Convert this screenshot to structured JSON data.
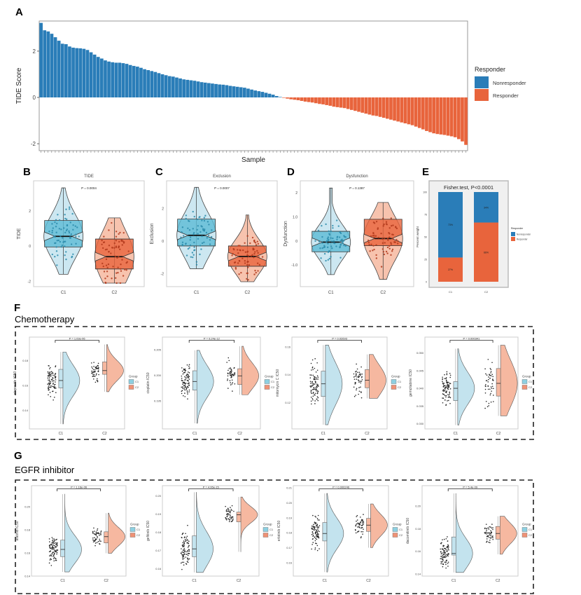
{
  "colors": {
    "nonresponder": "#2a7db8",
    "responder": "#e8643c",
    "c1_violin": "#c3e3ee",
    "c1_box": "#5cbcd6",
    "c1_point": "#2b8cab",
    "c2_violin": "#f6b8a0",
    "c2_box": "#e8643c",
    "c2_point": "#b3391c"
  },
  "panel_labels": {
    "a": "A",
    "b": "B",
    "c": "C",
    "d": "D",
    "e": "E",
    "f": "F",
    "g": "G"
  },
  "sections": {
    "f_title": "Chemotherapy",
    "g_title": "EGFR inhibitor"
  },
  "chart_data": [
    {
      "id": "A",
      "type": "bar",
      "xlabel": "Sample",
      "ylabel": "TIDE Score",
      "ylim": [
        -2.3,
        3.3
      ],
      "yticks": [
        -2,
        0,
        2
      ],
      "ytick_labels": [
        "-2",
        "0",
        "2"
      ],
      "legend": {
        "title": "Responder",
        "items": [
          "Nonresponder",
          "Responder"
        ],
        "position": "right"
      },
      "series": [
        {
          "name": "Nonresponder",
          "values": [
            3.22,
            2.9,
            2.85,
            2.75,
            2.6,
            2.45,
            2.32,
            2.3,
            2.2,
            2.15,
            2.13,
            2.12,
            2.1,
            2.05,
            1.95,
            1.85,
            1.75,
            1.68,
            1.6,
            1.55,
            1.52,
            1.5,
            1.5,
            1.48,
            1.45,
            1.4,
            1.36,
            1.33,
            1.28,
            1.22,
            1.18,
            1.14,
            1.1,
            1.05,
            1.0,
            0.96,
            0.92,
            0.9,
            0.86,
            0.82,
            0.78,
            0.76,
            0.74,
            0.72,
            0.69,
            0.66,
            0.64,
            0.62,
            0.6,
            0.58,
            0.56,
            0.55,
            0.53,
            0.5,
            0.48,
            0.46,
            0.44,
            0.42,
            0.38,
            0.34,
            0.3,
            0.27,
            0.24,
            0.2,
            0.16,
            0.12,
            0.06,
            0.02
          ]
        },
        {
          "name": "Responder",
          "values": [
            -0.02,
            -0.05,
            -0.08,
            -0.1,
            -0.12,
            -0.15,
            -0.18,
            -0.2,
            -0.22,
            -0.25,
            -0.28,
            -0.3,
            -0.33,
            -0.36,
            -0.4,
            -0.42,
            -0.44,
            -0.46,
            -0.5,
            -0.54,
            -0.58,
            -0.62,
            -0.66,
            -0.7,
            -0.74,
            -0.78,
            -0.8,
            -0.84,
            -0.88,
            -0.92,
            -0.96,
            -1.0,
            -1.04,
            -1.08,
            -1.12,
            -1.16,
            -1.2,
            -1.26,
            -1.32,
            -1.38,
            -1.45,
            -1.5,
            -1.55,
            -1.58,
            -1.6,
            -1.62,
            -1.65,
            -1.68,
            -1.72,
            -1.8,
            -1.9,
            -2.05
          ]
        }
      ]
    },
    {
      "id": "B",
      "type": "violin",
      "title": "TIDE",
      "ylabel": "TIDE",
      "pvalue": "P = 0.0004",
      "categories": [
        "C1",
        "C2"
      ],
      "ylim": [
        -2.3,
        3.7
      ],
      "yticks": [
        -2,
        0,
        2
      ],
      "ytick_labels": [
        "-2",
        "0",
        "2"
      ],
      "groups": [
        {
          "name": "C1",
          "min": -1.6,
          "q1": -0.05,
          "median": 0.55,
          "q3": 1.45,
          "max": 3.3
        },
        {
          "name": "C2",
          "min": -2.1,
          "q1": -1.3,
          "median": -0.6,
          "q3": 0.4,
          "max": 1.6
        }
      ]
    },
    {
      "id": "C",
      "type": "violin",
      "title": "Exclusion",
      "ylabel": "Exclusion",
      "pvalue": "P = 0.0007",
      "categories": [
        "C1",
        "C2"
      ],
      "ylim": [
        -2.8,
        3.7
      ],
      "yticks": [
        -2,
        0,
        2
      ],
      "ytick_labels": [
        "-2",
        "0",
        "2"
      ],
      "groups": [
        {
          "name": "C1",
          "min": -1.7,
          "q1": -0.3,
          "median": 0.35,
          "q3": 1.35,
          "max": 3.3
        },
        {
          "name": "C2",
          "min": -2.5,
          "q1": -1.55,
          "median": -0.95,
          "q3": -0.3,
          "max": 1.6
        }
      ]
    },
    {
      "id": "D",
      "type": "violin",
      "title": "Dysfunction",
      "ylabel": "Dysfunction",
      "pvalue": "P = 0.1387",
      "categories": [
        "C1",
        "C2"
      ],
      "ylim": [
        -1.9,
        2.5
      ],
      "yticks": [
        -1,
        0,
        1,
        2
      ],
      "ytick_labels": [
        "-1.0",
        "0",
        "1.0",
        "2"
      ],
      "groups": [
        {
          "name": "C1",
          "min": -1.4,
          "q1": -0.45,
          "median": -0.05,
          "q3": 0.4,
          "max": 2.2
        },
        {
          "name": "C2",
          "min": -1.6,
          "q1": -0.2,
          "median": 0.1,
          "q3": 0.9,
          "max": 1.6
        }
      ]
    },
    {
      "id": "E",
      "type": "bar",
      "stacked": true,
      "title": "Fisher.test, P<0.0001",
      "ylabel": "Percent weight",
      "categories": [
        "C1",
        "C2"
      ],
      "ylim": [
        0,
        100
      ],
      "yticks": [
        0,
        25,
        50,
        75,
        100
      ],
      "ytick_labels": [
        "0",
        "25",
        "50",
        "75",
        "100"
      ],
      "legend": {
        "title": "Responder",
        "items": [
          "Nonresponder",
          "Responder"
        ],
        "position": "right"
      },
      "series": [
        {
          "name": "Responder",
          "values": [
            27,
            66
          ],
          "labels": [
            "27%",
            "66%"
          ]
        },
        {
          "name": "Nonresponder",
          "values": [
            73,
            34
          ],
          "labels": [
            "73%",
            "34%"
          ]
        }
      ]
    },
    {
      "id": "F1",
      "type": "raincloud",
      "ylabel": "etoposide IC50",
      "pvalue": "P = 1.03e-06",
      "categories": [
        "C1",
        "C2"
      ],
      "ylim": [
        0.125,
        0.199
      ],
      "yticks": [
        0.14,
        0.16,
        0.18
      ],
      "ytick_labels": [
        "0.14",
        "0.16",
        "0.18"
      ],
      "legend": {
        "title": "Group",
        "items": [
          "C1",
          "C2"
        ]
      },
      "groups": [
        {
          "name": "C1",
          "min": 0.129,
          "q1": 0.158,
          "median": 0.164,
          "q3": 0.173,
          "max": 0.187
        },
        {
          "name": "C2",
          "min": 0.155,
          "q1": 0.169,
          "median": 0.172,
          "q3": 0.179,
          "max": 0.193
        }
      ]
    },
    {
      "id": "F2",
      "type": "raincloud",
      "ylabel": "cisplatin IC50",
      "pvalue": "P = 9.24e-12",
      "categories": [
        "C1",
        "C2"
      ],
      "ylim": [
        0.1895,
        0.2075
      ],
      "yticks": [
        0.195,
        0.2,
        0.205
      ],
      "ytick_labels": [
        "0.195",
        "0.200",
        "0.205"
      ],
      "legend": {
        "title": "Group",
        "items": [
          "C1",
          "C2"
        ]
      },
      "groups": [
        {
          "name": "C1",
          "min": 0.1906,
          "q1": 0.1971,
          "median": 0.1988,
          "q3": 0.2009,
          "max": 0.2049
        },
        {
          "name": "C2",
          "min": 0.1962,
          "q1": 0.1982,
          "median": 0.1999,
          "q3": 0.2013,
          "max": 0.2057
        }
      ]
    },
    {
      "id": "F3",
      "type": "raincloud",
      "ylabel": "mitomycin C IC50",
      "pvalue": "P = 0.02693",
      "categories": [
        "C1",
        "C2"
      ],
      "ylim": [
        0.101,
        0.167
      ],
      "yticks": [
        0.12,
        0.14,
        0.16
      ],
      "ytick_labels": [
        "0.12",
        "0.14",
        "0.16"
      ],
      "legend": {
        "title": "Group",
        "items": [
          "C1",
          "C2"
        ]
      },
      "groups": [
        {
          "name": "C1",
          "min": 0.104,
          "q1": 0.1243,
          "median": 0.1334,
          "q3": 0.1425,
          "max": 0.1613
        },
        {
          "name": "C2",
          "min": 0.123,
          "q1": 0.1306,
          "median": 0.136,
          "q3": 0.1436,
          "max": 0.1545
        }
      ]
    },
    {
      "id": "F4",
      "type": "raincloud",
      "ylabel": "gemcitabine IC50",
      "pvalue": "P = 0.000341",
      "categories": [
        "C1",
        "C2"
      ],
      "ylim": [
        0.0285,
        0.0545
      ],
      "yticks": [
        0.03,
        0.035,
        0.04,
        0.045,
        0.05
      ],
      "ytick_labels": [
        "0.030",
        "0.035",
        "0.040",
        "0.045",
        "0.050"
      ],
      "legend": {
        "title": "Group",
        "items": [
          "C1",
          "C2"
        ]
      },
      "groups": [
        {
          "name": "C1",
          "min": 0.0296,
          "q1": 0.0365,
          "median": 0.04,
          "q3": 0.0419,
          "max": 0.0512
        },
        {
          "name": "C2",
          "min": 0.0322,
          "q1": 0.0378,
          "median": 0.0414,
          "q3": 0.0456,
          "max": 0.0522
        }
      ]
    },
    {
      "id": "G1",
      "type": "raincloud",
      "ylabel": "afatinib IC50",
      "pvalue": "P = 1.16e-06",
      "categories": [
        "C1",
        "C2"
      ],
      "ylim": [
        0.14,
        0.218
      ],
      "yticks": [
        0.14,
        0.16,
        0.18,
        0.2
      ],
      "ytick_labels": [
        "0.14",
        "0.16",
        "0.18",
        "0.20"
      ],
      "legend": {
        "title": "Group",
        "items": [
          "C1",
          "C2"
        ]
      },
      "groups": [
        {
          "name": "C1",
          "min": 0.1436,
          "q1": 0.1568,
          "median": 0.163,
          "q3": 0.171,
          "max": 0.2107
        },
        {
          "name": "C2",
          "min": 0.1597,
          "q1": 0.1686,
          "median": 0.174,
          "q3": 0.1782,
          "max": 0.1943
        }
      ]
    },
    {
      "id": "G2",
      "type": "raincloud",
      "ylabel": "gefitinib IC50",
      "pvalue": "P = 4.95e-15",
      "categories": [
        "C1",
        "C2"
      ],
      "ylim": [
        0.156,
        0.2055
      ],
      "yticks": [
        0.16,
        0.17,
        0.18,
        0.19,
        0.2
      ],
      "ytick_labels": [
        "0.16",
        "0.17",
        "0.18",
        "0.19",
        "0.20"
      ],
      "legend": {
        "title": "Group",
        "items": [
          "C1",
          "C2"
        ]
      },
      "groups": [
        {
          "name": "C1",
          "min": 0.158,
          "q1": 0.1666,
          "median": 0.1709,
          "q3": 0.178,
          "max": 0.2019
        },
        {
          "name": "C2",
          "min": 0.1693,
          "q1": 0.1857,
          "median": 0.1896,
          "q3": 0.191,
          "max": 0.1993
        }
      ]
    },
    {
      "id": "G3",
      "type": "raincloud",
      "ylabel": "erlotinib IC50",
      "pvalue": "P = 0.000246",
      "categories": [
        "C1",
        "C2"
      ],
      "ylim": [
        0.151,
        0.2115
      ],
      "yticks": [
        0.16,
        0.17,
        0.18,
        0.19,
        0.2,
        0.21
      ],
      "ytick_labels": [
        "0.16",
        "0.17",
        "0.18",
        "0.19",
        "0.20",
        "0.21"
      ],
      "legend": {
        "title": "Group",
        "items": [
          "C1",
          "C2"
        ]
      },
      "groups": [
        {
          "name": "C1",
          "min": 0.1537,
          "q1": 0.1745,
          "median": 0.1795,
          "q3": 0.1868,
          "max": 0.2063
        },
        {
          "name": "C2",
          "min": 0.17,
          "q1": 0.1809,
          "median": 0.1851,
          "q3": 0.1896,
          "max": 0.1993
        }
      ]
    },
    {
      "id": "G4",
      "type": "raincloud",
      "ylabel": "dacomitinib IC50",
      "pvalue": "P = 5.4e-09",
      "categories": [
        "C1",
        "C2"
      ],
      "ylim": [
        0.138,
        0.218
      ],
      "yticks": [
        0.14,
        0.16,
        0.18,
        0.2
      ],
      "ytick_labels": [
        "0.14",
        "0.16",
        "0.18",
        "0.20"
      ],
      "legend": {
        "title": "Group",
        "items": [
          "C1",
          "C2"
        ]
      },
      "groups": [
        {
          "name": "C1",
          "min": 0.1412,
          "q1": 0.1566,
          "median": 0.158,
          "q3": 0.1726,
          "max": 0.2111
        },
        {
          "name": "C2",
          "min": 0.1573,
          "q1": 0.1707,
          "median": 0.1757,
          "q3": 0.1819,
          "max": 0.1909
        }
      ]
    }
  ]
}
